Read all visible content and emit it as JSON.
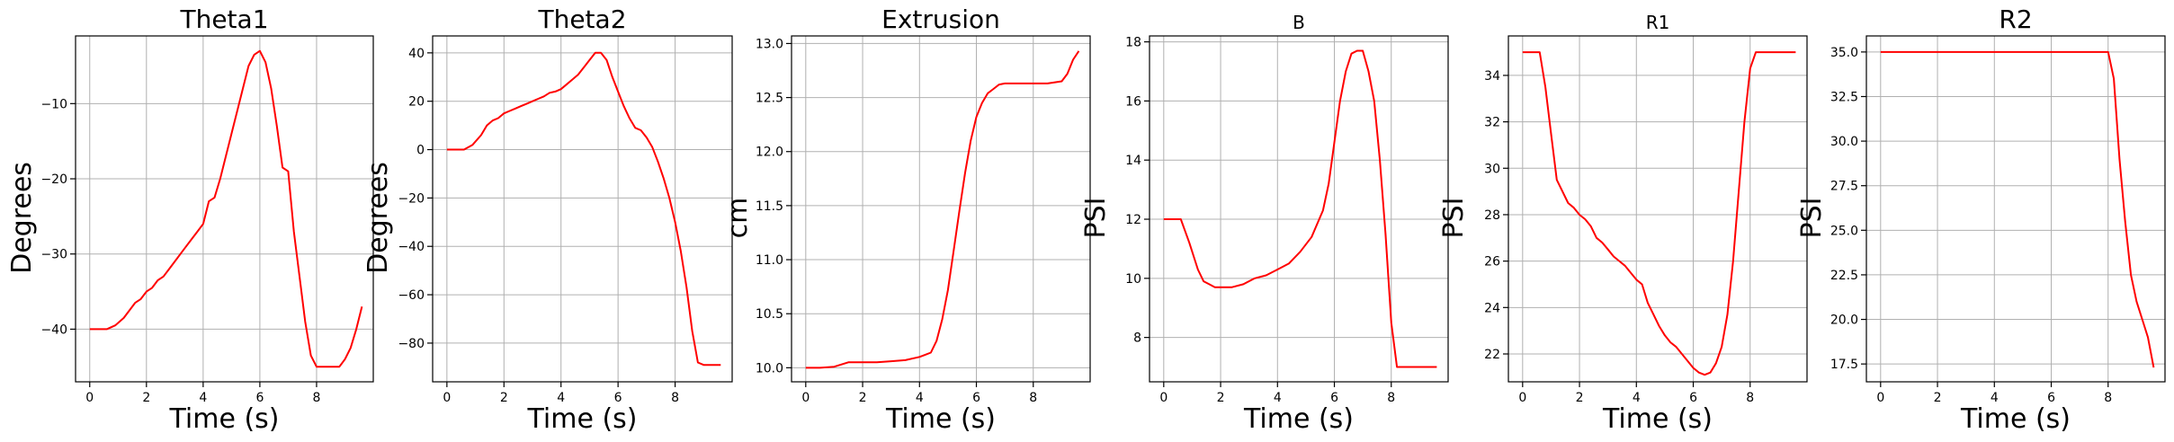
{
  "chart_data": [
    {
      "type": "line",
      "title": "Theta1",
      "xlabel": "Time (s)",
      "ylabel": "Degrees",
      "xlim": [
        -0.5,
        10
      ],
      "ylim": [
        -47,
        -1
      ],
      "xticks": [
        0,
        2,
        4,
        6,
        8
      ],
      "yticks": [
        -40,
        -30,
        -20,
        -10
      ],
      "tick_labels": [
        "0",
        "2",
        "4",
        "6",
        "8",
        "−40",
        "−30",
        "−20",
        "−10"
      ],
      "grid": true,
      "line_color": "#ff0000",
      "x": [
        0,
        0.3,
        0.6,
        0.9,
        1.2,
        1.4,
        1.6,
        1.8,
        2.0,
        2.2,
        2.4,
        2.6,
        2.8,
        3.0,
        3.2,
        3.4,
        3.6,
        3.8,
        4.0,
        4.2,
        4.4,
        4.6,
        4.8,
        5.0,
        5.2,
        5.4,
        5.6,
        5.8,
        6.0,
        6.2,
        6.4,
        6.6,
        6.8,
        7.0,
        7.2,
        7.4,
        7.6,
        7.8,
        8.0,
        8.2,
        8.4,
        8.6,
        8.8,
        9.0,
        9.2,
        9.4,
        9.6
      ],
      "y": [
        -40,
        -40,
        -40,
        -39.5,
        -38.5,
        -37.5,
        -36.5,
        -36,
        -35,
        -34.5,
        -33.5,
        -33,
        -32,
        -31,
        -30,
        -29,
        -28,
        -27,
        -26,
        -23,
        -22.5,
        -20,
        -17,
        -14,
        -11,
        -8,
        -5,
        -3.5,
        -3,
        -4.5,
        -8,
        -13,
        -18.5,
        -19,
        -27,
        -33,
        -39,
        -43.5,
        -45,
        -45,
        -45,
        -45,
        -45,
        -44,
        -42.5,
        -40,
        -37
      ]
    },
    {
      "type": "line",
      "title": "Theta2",
      "xlabel": "Time (s)",
      "ylabel": "Degrees",
      "xlim": [
        -0.5,
        10
      ],
      "ylim": [
        -96,
        47
      ],
      "xticks": [
        0,
        2,
        4,
        6,
        8
      ],
      "yticks": [
        -80,
        -60,
        -40,
        -20,
        0,
        20,
        40
      ],
      "tick_labels": [
        "0",
        "2",
        "4",
        "6",
        "8",
        "−80",
        "−60",
        "−40",
        "−20",
        "0",
        "20",
        "40"
      ],
      "grid": true,
      "line_color": "#ff0000",
      "x": [
        0,
        0.3,
        0.6,
        0.9,
        1.2,
        1.4,
        1.6,
        1.8,
        2.0,
        2.2,
        2.4,
        2.6,
        2.8,
        3.0,
        3.2,
        3.4,
        3.6,
        3.8,
        4.0,
        4.2,
        4.4,
        4.6,
        4.8,
        5.0,
        5.2,
        5.4,
        5.6,
        5.8,
        6.0,
        6.2,
        6.4,
        6.6,
        6.8,
        7.0,
        7.2,
        7.4,
        7.6,
        7.8,
        8.0,
        8.2,
        8.4,
        8.6,
        8.8,
        9.0,
        9.2,
        9.4,
        9.6
      ],
      "y": [
        0,
        0,
        0,
        2,
        6,
        10,
        12,
        13,
        15,
        16,
        17,
        18,
        19,
        20,
        21,
        22,
        23.5,
        24,
        25,
        27,
        29,
        31,
        34,
        37,
        40,
        40,
        37,
        30,
        24,
        18,
        13,
        9,
        8,
        5,
        1,
        -5,
        -12,
        -20,
        -30,
        -42,
        -57,
        -75,
        -88,
        -89,
        -89,
        -89,
        -89
      ]
    },
    {
      "type": "line",
      "title": "Extrusion",
      "xlabel": "Time (s)",
      "ylabel": "cm",
      "xlim": [
        -0.5,
        10
      ],
      "ylim": [
        9.87,
        13.07
      ],
      "xticks": [
        0,
        2,
        4,
        6,
        8
      ],
      "yticks": [
        10.0,
        10.5,
        11.0,
        11.5,
        12.0,
        12.5,
        13.0
      ],
      "tick_labels": [
        "0",
        "2",
        "4",
        "6",
        "8",
        "10.0",
        "10.5",
        "11.0",
        "11.5",
        "12.0",
        "12.5",
        "13.0"
      ],
      "grid": true,
      "line_color": "#ff0000",
      "x": [
        0,
        0.5,
        1.0,
        1.5,
        2.0,
        2.5,
        3.0,
        3.5,
        4.0,
        4.2,
        4.4,
        4.6,
        4.8,
        5.0,
        5.2,
        5.4,
        5.6,
        5.8,
        6.0,
        6.2,
        6.4,
        6.6,
        6.8,
        7.0,
        7.5,
        8.0,
        8.5,
        9.0,
        9.2,
        9.4,
        9.6
      ],
      "y": [
        10.0,
        10.0,
        10.01,
        10.05,
        10.05,
        10.05,
        10.06,
        10.07,
        10.1,
        10.12,
        10.14,
        10.25,
        10.45,
        10.72,
        11.08,
        11.45,
        11.8,
        12.1,
        12.32,
        12.45,
        12.54,
        12.58,
        12.62,
        12.63,
        12.63,
        12.63,
        12.63,
        12.65,
        12.72,
        12.85,
        12.93
      ]
    },
    {
      "type": "line",
      "title": "B",
      "xlabel": "Time (s)",
      "ylabel": "PSI",
      "xlim": [
        -0.5,
        10
      ],
      "ylim": [
        6.5,
        18.2
      ],
      "xticks": [
        0,
        2,
        4,
        6,
        8
      ],
      "yticks": [
        8,
        10,
        12,
        14,
        16,
        18
      ],
      "tick_labels": [
        "0",
        "2",
        "4",
        "6",
        "8",
        "8",
        "10",
        "12",
        "14",
        "16",
        "18"
      ],
      "grid": true,
      "line_color": "#ff0000",
      "x": [
        0,
        0.3,
        0.6,
        0.9,
        1.2,
        1.4,
        1.6,
        1.8,
        2.0,
        2.4,
        2.8,
        3.2,
        3.6,
        4.0,
        4.4,
        4.8,
        5.2,
        5.6,
        5.8,
        6.0,
        6.2,
        6.4,
        6.6,
        6.8,
        7.0,
        7.2,
        7.4,
        7.6,
        7.8,
        8.0,
        8.2,
        8.4,
        8.6,
        9.0,
        9.4,
        9.6
      ],
      "y": [
        12,
        12,
        12,
        11.2,
        10.3,
        9.9,
        9.8,
        9.7,
        9.7,
        9.7,
        9.8,
        10.0,
        10.1,
        10.3,
        10.5,
        10.9,
        11.4,
        12.3,
        13.2,
        14.6,
        16.0,
        17.0,
        17.6,
        17.7,
        17.7,
        17.0,
        16.0,
        14.0,
        11.5,
        8.5,
        7.0,
        7.0,
        7.0,
        7.0,
        7.0,
        7.0
      ]
    },
    {
      "type": "line",
      "title": "R1",
      "xlabel": "Time (s)",
      "ylabel": "PSI",
      "xlim": [
        -0.5,
        10
      ],
      "ylim": [
        20.8,
        35.7
      ],
      "xticks": [
        0,
        2,
        4,
        6,
        8
      ],
      "yticks": [
        22,
        24,
        26,
        28,
        30,
        32,
        34
      ],
      "tick_labels": [
        "0",
        "2",
        "4",
        "6",
        "8",
        "22",
        "24",
        "26",
        "28",
        "30",
        "32",
        "34"
      ],
      "grid": true,
      "line_color": "#ff0000",
      "x": [
        0,
        0.3,
        0.6,
        0.8,
        1.0,
        1.2,
        1.4,
        1.6,
        1.8,
        2.0,
        2.2,
        2.4,
        2.6,
        2.8,
        3.0,
        3.2,
        3.4,
        3.6,
        3.8,
        4.0,
        4.2,
        4.4,
        4.6,
        4.8,
        5.0,
        5.2,
        5.4,
        5.6,
        5.8,
        6.0,
        6.2,
        6.4,
        6.6,
        6.8,
        7.0,
        7.2,
        7.4,
        7.6,
        7.8,
        8.0,
        8.2,
        8.4,
        8.6,
        9.0,
        9.4,
        9.6
      ],
      "y": [
        35,
        35,
        35,
        33.5,
        31.5,
        29.5,
        29,
        28.5,
        28.3,
        28,
        27.8,
        27.5,
        27,
        26.8,
        26.5,
        26.2,
        26,
        25.8,
        25.5,
        25.2,
        25,
        24.2,
        23.7,
        23.2,
        22.8,
        22.5,
        22.3,
        22,
        21.7,
        21.4,
        21.2,
        21.1,
        21.2,
        21.6,
        22.3,
        23.7,
        26,
        29,
        32,
        34.3,
        35,
        35,
        35,
        35,
        35,
        35
      ]
    },
    {
      "type": "line",
      "title": "R2",
      "xlabel": "Time (s)",
      "ylabel": "PSI",
      "xlim": [
        -0.5,
        10
      ],
      "ylim": [
        16.5,
        35.9
      ],
      "xticks": [
        0,
        2,
        4,
        6,
        8
      ],
      "yticks": [
        17.5,
        20.0,
        22.5,
        25.0,
        27.5,
        30.0,
        32.5,
        35.0
      ],
      "tick_labels": [
        "0",
        "2",
        "4",
        "6",
        "8",
        "17.5",
        "20.0",
        "22.5",
        "25.0",
        "27.5",
        "30.0",
        "32.5",
        "35.0"
      ],
      "grid": true,
      "line_color": "#ff0000",
      "x": [
        0,
        2,
        4,
        6,
        7,
        8.0,
        8.2,
        8.4,
        8.6,
        8.8,
        9.0,
        9.2,
        9.4,
        9.6
      ],
      "y": [
        35,
        35,
        35,
        35,
        35,
        35,
        33.5,
        29,
        25.5,
        22.5,
        21,
        20,
        19,
        17.3
      ]
    }
  ]
}
